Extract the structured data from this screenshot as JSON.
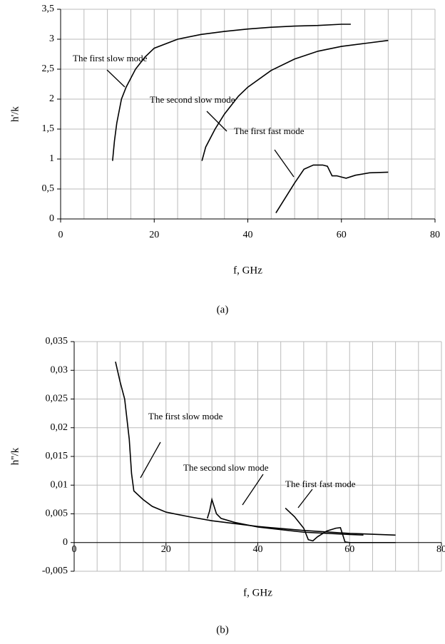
{
  "chart_data": [
    {
      "type": "line",
      "caption": "(a)",
      "x_label": "f, GHz",
      "y_label": "h'/k",
      "grid": true,
      "xlim": [
        0,
        80
      ],
      "xticks": [
        0,
        20,
        40,
        60,
        80
      ],
      "ylim": [
        0,
        3.5
      ],
      "yticks": [
        0,
        {
          "value": 0.5,
          "label": "0,5"
        },
        1,
        {
          "value": 1.5,
          "label": "1,5"
        },
        2,
        {
          "value": 2.5,
          "label": "2,5"
        },
        3,
        {
          "value": 3.5,
          "label": "3,5"
        }
      ],
      "series": [
        {
          "name": "The first slow mode",
          "color": "#000000",
          "x": [
            11.1,
            11.5,
            12,
            13,
            14,
            16,
            18,
            20,
            25,
            30,
            35,
            40,
            45,
            50,
            55,
            60,
            62
          ],
          "y": [
            0.97,
            1.3,
            1.6,
            2.0,
            2.2,
            2.5,
            2.7,
            2.85,
            3.0,
            3.08,
            3.13,
            3.17,
            3.2,
            3.22,
            3.23,
            3.25,
            3.25
          ]
        },
        {
          "name": "The second slow mode",
          "color": "#000000",
          "x": [
            30.2,
            31,
            33,
            35,
            38,
            40,
            45,
            50,
            55,
            60,
            65,
            70
          ],
          "y": [
            0.97,
            1.2,
            1.5,
            1.75,
            2.05,
            2.2,
            2.48,
            2.67,
            2.8,
            2.88,
            2.93,
            2.98
          ]
        },
        {
          "name": "The first fast mode",
          "color": "#000000",
          "x": [
            46,
            48,
            50,
            52,
            54,
            56,
            57,
            58,
            59,
            61,
            63,
            66,
            70
          ],
          "y": [
            0.1,
            0.35,
            0.6,
            0.83,
            0.9,
            0.9,
            0.88,
            0.72,
            0.72,
            0.68,
            0.73,
            0.77,
            0.78
          ]
        }
      ]
    },
    {
      "type": "line",
      "caption": "(b)",
      "x_label": "f, GHz",
      "y_label": "h''/k",
      "grid": true,
      "xlim": [
        0,
        80
      ],
      "xticks": [
        0,
        20,
        40,
        60,
        80
      ],
      "ylim": [
        -0.005,
        0.035
      ],
      "yticks": [
        {
          "value": -0.005,
          "label": "-0,005"
        },
        0,
        {
          "value": 0.005,
          "label": "0,005"
        },
        {
          "value": 0.01,
          "label": "0,01"
        },
        {
          "value": 0.015,
          "label": "0,015"
        },
        {
          "value": 0.02,
          "label": "0,02"
        },
        {
          "value": 0.025,
          "label": "0,025"
        },
        {
          "value": 0.03,
          "label": "0,03"
        },
        {
          "value": 0.035,
          "label": "0,035"
        }
      ],
      "series": [
        {
          "name": "The first slow mode",
          "color": "#000000",
          "x": [
            9,
            10,
            11,
            12,
            12.5,
            13,
            15,
            17,
            20,
            25,
            30,
            40,
            50,
            60,
            70
          ],
          "y": [
            0.0315,
            0.028,
            0.025,
            0.018,
            0.012,
            0.009,
            0.0075,
            0.0063,
            0.0053,
            0.0045,
            0.0038,
            0.0028,
            0.0021,
            0.0016,
            0.0013
          ]
        },
        {
          "name": "The second slow mode",
          "color": "#000000",
          "x": [
            29,
            29.5,
            30,
            31,
            32,
            35,
            40,
            50,
            60,
            63
          ],
          "y": [
            0.0042,
            0.0055,
            0.0075,
            0.005,
            0.0042,
            0.0035,
            0.0027,
            0.0018,
            0.0014,
            0.0013
          ]
        },
        {
          "name": "The first fast mode",
          "color": "#000000",
          "x": [
            46,
            48,
            50,
            51,
            52,
            53,
            55,
            57,
            58,
            59,
            60,
            70
          ],
          "y": [
            0.006,
            0.0045,
            0.0025,
            0.0005,
            0.0003,
            0.001,
            0.002,
            0.0025,
            0.0026,
            0.0001,
            0,
            0
          ]
        }
      ]
    }
  ]
}
